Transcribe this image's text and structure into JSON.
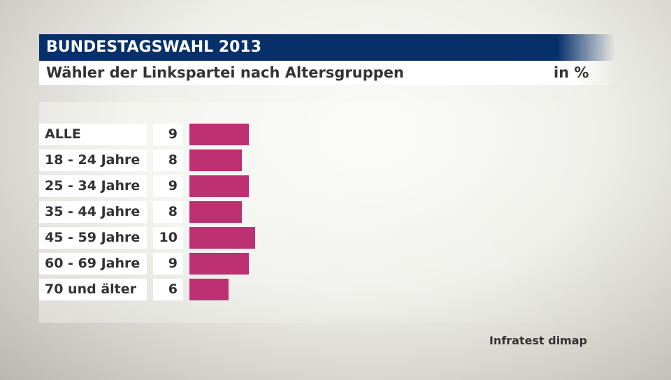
{
  "header": {
    "title": "BUNDESTAGSWAHL 2013",
    "subtitle": "Wähler der Linkspartei nach Altersgruppen",
    "unit": "in %"
  },
  "source": "Infratest dimap",
  "chart_data": {
    "type": "bar",
    "orientation": "horizontal",
    "title": "Wähler der Linkspartei nach Altersgruppen",
    "unit": "in %",
    "categories": [
      "ALLE",
      "18 - 24 Jahre",
      "25 - 34 Jahre",
      "35 - 44 Jahre",
      "45 - 59 Jahre",
      "60 - 69 Jahre",
      "70 und älter"
    ],
    "values": [
      9,
      8,
      9,
      8,
      10,
      9,
      6
    ],
    "color": "#bd3071",
    "xlim": [
      0,
      10
    ]
  }
}
